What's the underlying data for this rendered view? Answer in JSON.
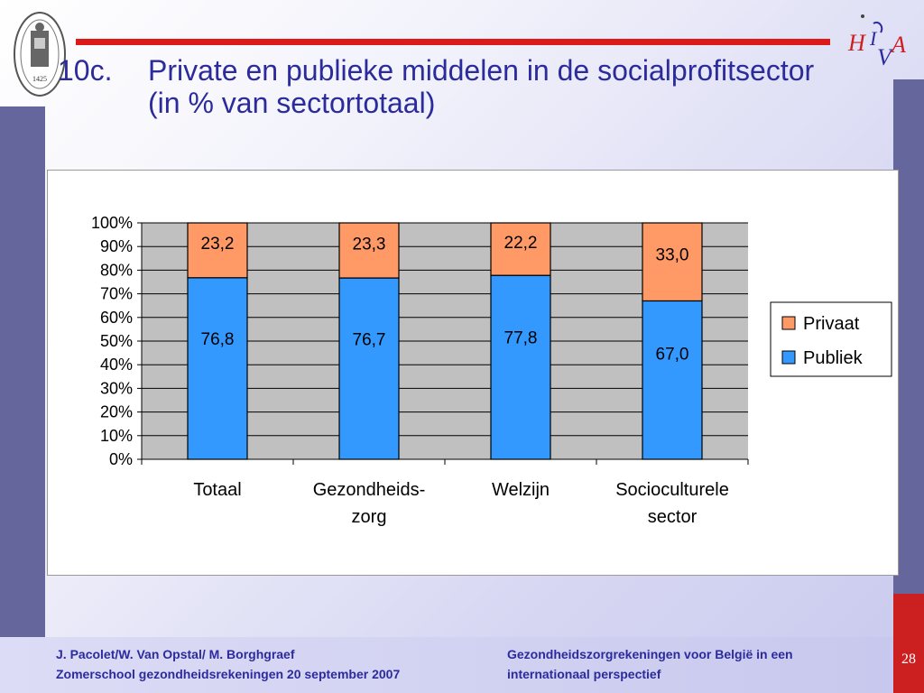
{
  "slide": {
    "number_prefix": "10c.",
    "title": "Private en publieke middelen in de socialprofitsector (in % van sectortotaal)",
    "page": "28",
    "logo_left_text": "1425",
    "logo_right_text": "HIVA"
  },
  "footer": {
    "left_line1": "J. Pacolet/W. Van Opstal/ M. Borghgraef",
    "left_line2": "Zomerschool gezondheidsrekeningen 20 september 2007",
    "right_line1": "Gezondheidszorgrekeningen voor België in een",
    "right_line2": "internationaal perspectief"
  },
  "colors": {
    "title": "#2b2b9c",
    "accent_red": "#dc1a1a",
    "side_bar": "#65669c",
    "publiek": "#3399ff",
    "privaat": "#ff9966",
    "plot_bg": "#c0c0c0"
  },
  "chart_data": {
    "type": "bar",
    "stacked": true,
    "percent_stacked": true,
    "categories": [
      [
        "Totaal"
      ],
      [
        "Gezondheids-",
        "zorg"
      ],
      [
        "Welzijn"
      ],
      [
        "Socioculturele",
        "sector"
      ]
    ],
    "series": [
      {
        "name": "Publiek",
        "values": [
          76.8,
          76.7,
          77.8,
          67.0
        ],
        "labels": [
          "76,8",
          "76,7",
          "77,8",
          "67,0"
        ],
        "color": "#3399ff"
      },
      {
        "name": "Privaat",
        "values": [
          23.2,
          23.3,
          22.2,
          33.0
        ],
        "labels": [
          "23,2",
          "23,3",
          "22,2",
          "33,0"
        ],
        "color": "#ff9966"
      }
    ],
    "y_ticks": [
      "0%",
      "10%",
      "20%",
      "30%",
      "40%",
      "50%",
      "60%",
      "70%",
      "80%",
      "90%",
      "100%"
    ],
    "ylim": [
      0,
      100
    ],
    "grid": true,
    "legend": {
      "position": "right",
      "entries": [
        "Privaat",
        "Publiek"
      ]
    }
  }
}
